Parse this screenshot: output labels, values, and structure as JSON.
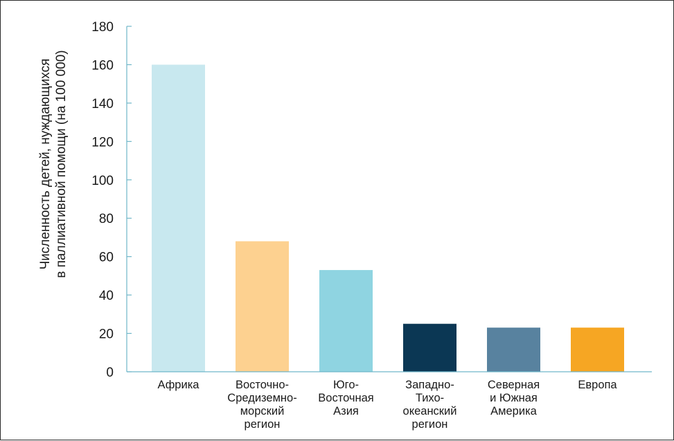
{
  "chart_data": {
    "type": "bar",
    "categories": [
      [
        "Африка"
      ],
      [
        "Восточно-",
        "Средиземно-",
        "морский",
        "регион"
      ],
      [
        "Юго-",
        "Восточная",
        "Азия"
      ],
      [
        "Западно-",
        "Тихо-",
        "океанский",
        "регион"
      ],
      [
        "Северная",
        "и Южная",
        "Америка"
      ],
      [
        "Европа"
      ]
    ],
    "values": [
      160,
      68,
      53,
      25,
      23,
      23
    ],
    "colors": [
      "#c8e8ef",
      "#fdd190",
      "#8fd4e1",
      "#0b3754",
      "#58829f",
      "#f6a623"
    ],
    "ylabel": [
      "Численность детей, нуждающихся",
      "в паллиативной помощи (на 100 000)"
    ],
    "ylim": [
      0,
      180
    ],
    "yticks": [
      0,
      20,
      40,
      60,
      80,
      100,
      120,
      140,
      160,
      180
    ],
    "grid": false
  }
}
